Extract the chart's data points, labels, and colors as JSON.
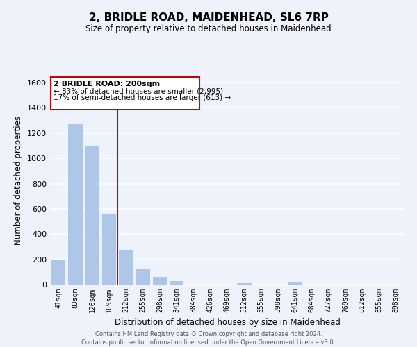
{
  "title": "2, BRIDLE ROAD, MAIDENHEAD, SL6 7RP",
  "subtitle": "Size of property relative to detached houses in Maidenhead",
  "xlabel": "Distribution of detached houses by size in Maidenhead",
  "ylabel": "Number of detached properties",
  "bar_labels": [
    "41sqm",
    "83sqm",
    "126sqm",
    "169sqm",
    "212sqm",
    "255sqm",
    "298sqm",
    "341sqm",
    "384sqm",
    "426sqm",
    "469sqm",
    "512sqm",
    "555sqm",
    "598sqm",
    "641sqm",
    "684sqm",
    "727sqm",
    "769sqm",
    "812sqm",
    "855sqm",
    "898sqm"
  ],
  "bar_values": [
    197,
    1275,
    1095,
    560,
    275,
    125,
    60,
    28,
    0,
    0,
    0,
    13,
    0,
    0,
    16,
    0,
    0,
    0,
    0,
    0,
    0
  ],
  "bar_color": "#aec6e8",
  "red_line_bar_index": 4,
  "property_line_color": "#cc0000",
  "ylim": [
    0,
    1650
  ],
  "yticks": [
    0,
    200,
    400,
    600,
    800,
    1000,
    1200,
    1400,
    1600
  ],
  "annotation_title": "2 BRIDLE ROAD: 200sqm",
  "annotation_line1": "← 83% of detached houses are smaller (2,995)",
  "annotation_line2": "17% of semi-detached houses are larger (613) →",
  "annotation_box_color": "#cc0000",
  "footer_line1": "Contains HM Land Registry data © Crown copyright and database right 2024.",
  "footer_line2": "Contains public sector information licensed under the Open Government Licence v3.0.",
  "background_color": "#eef2fb",
  "grid_color": "#ffffff"
}
